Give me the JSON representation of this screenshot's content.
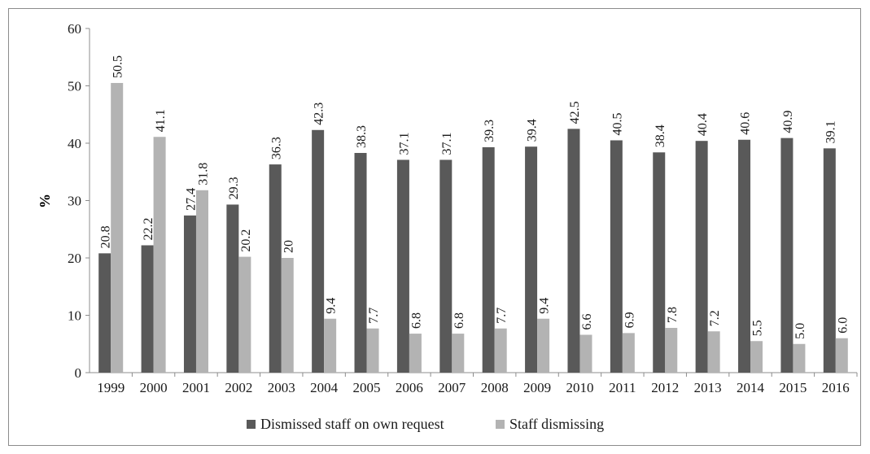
{
  "chart_data": {
    "type": "bar",
    "title": "",
    "xlabel": "",
    "ylabel": "%",
    "ylim": [
      0,
      60
    ],
    "yticks": [
      0,
      10,
      20,
      30,
      40,
      50,
      60
    ],
    "grid": false,
    "legend_position": "bottom",
    "categories": [
      "1999",
      "2000",
      "2001",
      "2002",
      "2003",
      "2004",
      "2005",
      "2006",
      "2007",
      "2008",
      "2009",
      "2010",
      "2011",
      "2012",
      "2013",
      "2014",
      "2015",
      "2016"
    ],
    "series": [
      {
        "name": "Dismissed staff on own request",
        "color": "#595959",
        "values": [
          20.8,
          22.2,
          27.4,
          29.3,
          36.3,
          42.3,
          38.3,
          37.1,
          37.1,
          39.3,
          39.4,
          42.5,
          40.5,
          38.4,
          40.4,
          40.6,
          40.9,
          39.1
        ],
        "labels": [
          "20.8",
          "22.2",
          "27.4",
          "29.3",
          "36.3",
          "42.3",
          "38.3",
          "37.1",
          "37.1",
          "39.3",
          "39.4",
          "42.5",
          "40.5",
          "38.4",
          "40.4",
          "40.6",
          "40.9",
          "39.1"
        ]
      },
      {
        "name": "Staff dismissing",
        "color": "#b3b3b3",
        "values": [
          50.5,
          41.1,
          31.8,
          20.2,
          20,
          9.4,
          7.7,
          6.8,
          6.8,
          7.7,
          9.4,
          6.6,
          6.9,
          7.8,
          7.2,
          5.5,
          5.0,
          6.0
        ],
        "labels": [
          "50.5",
          "41.1",
          "31.8",
          "20.2",
          "20",
          "9.4",
          "7.7",
          "6.8",
          "6.8",
          "7.7",
          "9.4",
          "6.6",
          "6.9",
          "7.8",
          "7.2",
          "5.5",
          "5.0",
          "6.0"
        ]
      }
    ]
  }
}
